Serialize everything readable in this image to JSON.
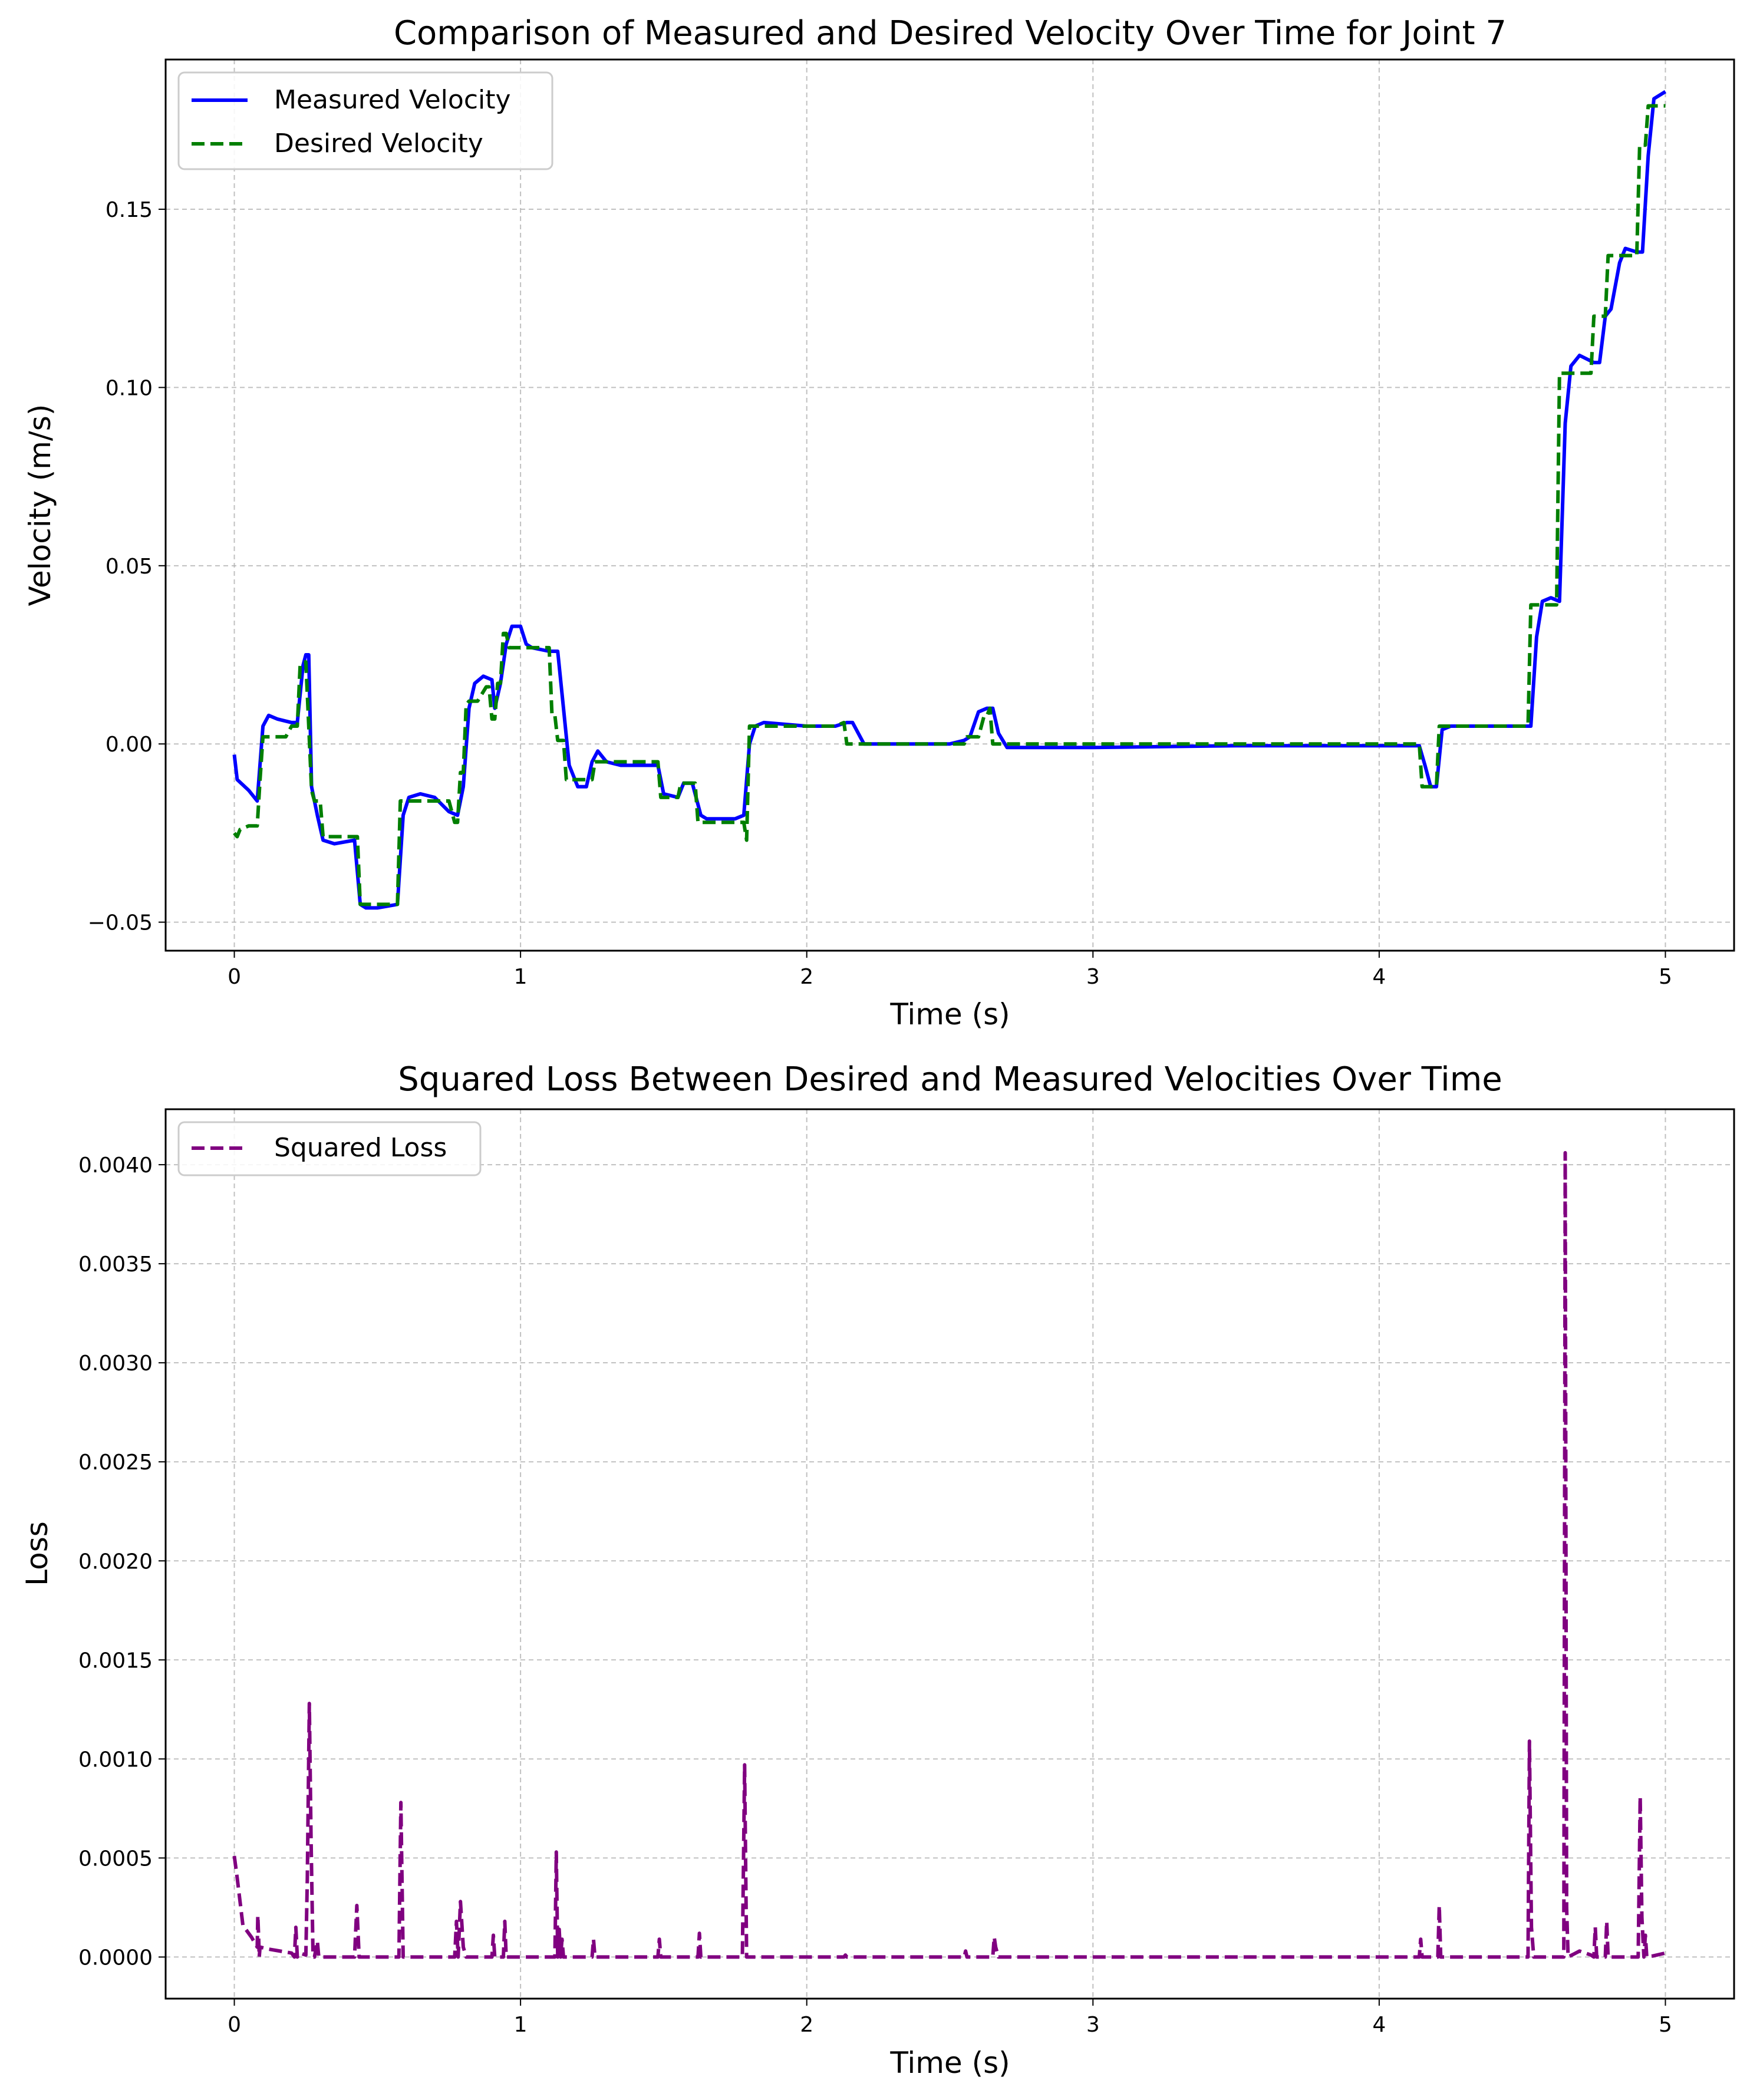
{
  "chart_data": [
    {
      "type": "line",
      "title": "Comparison of Measured and Desired Velocity Over Time for Joint 7",
      "xlabel": "Time (s)",
      "ylabel": "Velocity (m/s)",
      "xlim": [
        -0.24,
        5.24
      ],
      "ylim": [
        -0.058,
        0.192
      ],
      "xticks": [
        0,
        1,
        2,
        3,
        4,
        5
      ],
      "xtick_labels": [
        "0",
        "1",
        "2",
        "3",
        "4",
        "5"
      ],
      "yticks": [
        -0.05,
        0.0,
        0.05,
        0.1,
        0.15
      ],
      "ytick_labels": [
        "−0.05",
        "0.00",
        "0.05",
        "0.10",
        "0.15"
      ],
      "grid": true,
      "legend": "top-left",
      "series": [
        {
          "name": "Measured Velocity",
          "color": "#0000ff",
          "style": "solid",
          "x": [
            0.0,
            0.01,
            0.05,
            0.08,
            0.1,
            0.12,
            0.15,
            0.2,
            0.22,
            0.24,
            0.25,
            0.26,
            0.27,
            0.29,
            0.31,
            0.35,
            0.42,
            0.44,
            0.46,
            0.5,
            0.57,
            0.59,
            0.61,
            0.65,
            0.7,
            0.75,
            0.78,
            0.8,
            0.82,
            0.84,
            0.87,
            0.9,
            0.91,
            0.93,
            0.95,
            0.97,
            1.0,
            1.02,
            1.04,
            1.1,
            1.13,
            1.15,
            1.17,
            1.2,
            1.23,
            1.25,
            1.27,
            1.3,
            1.35,
            1.48,
            1.5,
            1.55,
            1.57,
            1.6,
            1.63,
            1.65,
            1.75,
            1.78,
            1.8,
            1.82,
            1.85,
            2.0,
            2.1,
            2.14,
            2.16,
            2.2,
            2.5,
            2.55,
            2.57,
            2.6,
            2.63,
            2.65,
            2.67,
            2.7,
            3.0,
            3.5,
            4.14,
            4.16,
            4.18,
            4.2,
            4.22,
            4.25,
            4.5,
            4.53,
            4.55,
            4.57,
            4.6,
            4.63,
            4.65,
            4.67,
            4.7,
            4.75,
            4.77,
            4.79,
            4.81,
            4.84,
            4.86,
            4.9,
            4.92,
            4.94,
            4.96,
            5.0
          ],
          "y": [
            -0.003,
            -0.01,
            -0.013,
            -0.016,
            0.005,
            0.008,
            0.007,
            0.006,
            0.006,
            0.022,
            0.025,
            0.025,
            -0.012,
            -0.02,
            -0.027,
            -0.028,
            -0.027,
            -0.045,
            -0.046,
            -0.046,
            -0.045,
            -0.02,
            -0.015,
            -0.014,
            -0.015,
            -0.019,
            -0.02,
            -0.012,
            0.01,
            0.017,
            0.019,
            0.018,
            0.01,
            0.017,
            0.028,
            0.033,
            0.033,
            0.028,
            0.027,
            0.026,
            0.026,
            0.01,
            -0.006,
            -0.012,
            -0.012,
            -0.005,
            -0.002,
            -0.005,
            -0.006,
            -0.006,
            -0.014,
            -0.015,
            -0.011,
            -0.011,
            -0.02,
            -0.021,
            -0.021,
            -0.02,
            0.0,
            0.005,
            0.006,
            0.005,
            0.005,
            0.006,
            0.006,
            0.0,
            0.0,
            0.001,
            0.002,
            0.009,
            0.01,
            0.01,
            0.003,
            -0.001,
            -0.001,
            -0.0005,
            -0.0005,
            -0.006,
            -0.012,
            -0.012,
            0.004,
            0.005,
            0.005,
            0.005,
            0.03,
            0.04,
            0.041,
            0.04,
            0.09,
            0.106,
            0.109,
            0.107,
            0.107,
            0.12,
            0.122,
            0.135,
            0.139,
            0.138,
            0.138,
            0.165,
            0.181,
            0.183
          ]
        },
        {
          "name": "Desired Velocity",
          "color": "#007f00",
          "style": "dashed",
          "x": [
            0.0,
            0.01,
            0.02,
            0.05,
            0.08,
            0.09,
            0.1,
            0.12,
            0.15,
            0.18,
            0.2,
            0.21,
            0.22,
            0.23,
            0.24,
            0.25,
            0.26,
            0.27,
            0.28,
            0.29,
            0.3,
            0.31,
            0.35,
            0.42,
            0.43,
            0.44,
            0.48,
            0.57,
            0.58,
            0.59,
            0.65,
            0.75,
            0.77,
            0.78,
            0.79,
            0.8,
            0.81,
            0.82,
            0.85,
            0.88,
            0.89,
            0.9,
            0.91,
            0.92,
            0.93,
            0.94,
            0.95,
            0.96,
            1.02,
            1.03,
            1.1,
            1.11,
            1.12,
            1.13,
            1.15,
            1.16,
            1.2,
            1.25,
            1.26,
            1.3,
            1.48,
            1.49,
            1.55,
            1.56,
            1.61,
            1.62,
            1.75,
            1.78,
            1.79,
            1.8,
            1.85,
            2.1,
            2.13,
            2.14,
            2.5,
            2.55,
            2.56,
            2.6,
            2.62,
            2.63,
            2.64,
            2.65,
            3.0,
            4.14,
            4.15,
            4.2,
            4.21,
            4.5,
            4.52,
            4.53,
            4.55,
            4.6,
            4.62,
            4.63,
            4.65,
            4.74,
            4.75,
            4.79,
            4.8,
            4.83,
            4.84,
            4.9,
            4.91,
            4.93,
            4.94,
            5.0
          ],
          "y": [
            -0.025,
            -0.026,
            -0.024,
            -0.023,
            -0.023,
            -0.01,
            0.002,
            0.002,
            0.002,
            0.002,
            0.005,
            0.005,
            0.005,
            0.022,
            0.023,
            0.023,
            0.005,
            -0.013,
            -0.016,
            -0.016,
            -0.016,
            -0.026,
            -0.026,
            -0.026,
            -0.026,
            -0.045,
            -0.045,
            -0.045,
            -0.016,
            -0.016,
            -0.016,
            -0.016,
            -0.022,
            -0.022,
            -0.008,
            -0.008,
            0.011,
            0.012,
            0.012,
            0.016,
            0.016,
            0.007,
            0.007,
            0.017,
            0.017,
            0.031,
            0.031,
            0.027,
            0.027,
            0.027,
            0.027,
            0.008,
            0.008,
            0.001,
            0.001,
            -0.01,
            -0.01,
            -0.01,
            -0.005,
            -0.005,
            -0.005,
            -0.015,
            -0.015,
            -0.011,
            -0.011,
            -0.022,
            -0.022,
            -0.022,
            -0.027,
            0.005,
            0.005,
            0.005,
            0.006,
            0.0,
            0.0,
            0.0,
            0.002,
            0.002,
            0.008,
            0.008,
            0.01,
            0.0,
            0.0,
            0.0,
            -0.012,
            -0.012,
            0.005,
            0.005,
            0.005,
            0.039,
            0.039,
            0.039,
            0.039,
            0.104,
            0.104,
            0.104,
            0.12,
            0.12,
            0.137,
            0.137,
            0.137,
            0.137,
            0.168,
            0.168,
            0.179,
            0.179
          ]
        }
      ]
    },
    {
      "type": "line",
      "title": "Squared Loss Between Desired and Measured Velocities Over Time",
      "xlabel": "Time (s)",
      "ylabel": "Loss",
      "xlim": [
        -0.24,
        5.24
      ],
      "ylim": [
        -0.00021,
        0.00428
      ],
      "xticks": [
        0,
        1,
        2,
        3,
        4,
        5
      ],
      "xtick_labels": [
        "0",
        "1",
        "2",
        "3",
        "4",
        "5"
      ],
      "yticks": [
        0.0,
        0.0005,
        0.001,
        0.0015,
        0.002,
        0.0025,
        0.003,
        0.0035,
        0.004
      ],
      "ytick_labels": [
        "0.0000",
        "0.0005",
        "0.0010",
        "0.0015",
        "0.0020",
        "0.0025",
        "0.0030",
        "0.0035",
        "0.0040"
      ],
      "grid": true,
      "legend": "top-left",
      "series": [
        {
          "name": "Squared Loss",
          "color": "#800080",
          "style": "dashed",
          "x": [
            0.0,
            0.01,
            0.03,
            0.06,
            0.08,
            0.082,
            0.085,
            0.087,
            0.09,
            0.12,
            0.2,
            0.21,
            0.215,
            0.22,
            0.23,
            0.25,
            0.255,
            0.262,
            0.268,
            0.275,
            0.28,
            0.29,
            0.295,
            0.3,
            0.31,
            0.42,
            0.428,
            0.436,
            0.44,
            0.575,
            0.582,
            0.59,
            0.6,
            0.77,
            0.776,
            0.782,
            0.79,
            0.8,
            0.81,
            0.82,
            0.9,
            0.905,
            0.91,
            0.94,
            0.945,
            0.95,
            0.96,
            1.12,
            1.125,
            1.13,
            1.135,
            1.14,
            1.145,
            1.15,
            1.25,
            1.255,
            1.26,
            1.48,
            1.485,
            1.49,
            1.6,
            1.62,
            1.625,
            1.63,
            1.775,
            1.783,
            1.79,
            1.8,
            2.13,
            2.135,
            2.14,
            2.55,
            2.555,
            2.56,
            2.65,
            2.655,
            2.66,
            2.67,
            3.0,
            4.14,
            4.145,
            4.15,
            4.205,
            4.21,
            4.215,
            4.22,
            4.52,
            4.525,
            4.532,
            4.54,
            4.6,
            4.64,
            4.645,
            4.65,
            4.655,
            4.66,
            4.7,
            4.74,
            4.75,
            4.755,
            4.76,
            4.79,
            4.795,
            4.8,
            4.905,
            4.912,
            4.918,
            4.925,
            4.93,
            4.935,
            4.94,
            5.0
          ],
          "y": [
            0.00051,
            0.0004,
            0.00016,
            0.0001,
            5e-05,
            0.00021,
            0.0001,
            0.0,
            5e-05,
            4e-05,
            2e-05,
            0.0,
            0.00015,
            0.0,
            2e-05,
            1e-05,
            0.0004,
            0.00128,
            0.0006,
            0.0,
            0.0,
            8e-05,
            0.0,
            0.0,
            0.0,
            0.0,
            0.00026,
            0.0,
            0.0,
            0.0,
            0.00078,
            0.0,
            0.0,
            0.0,
            0.00018,
            0.0,
            0.00028,
            5e-05,
            0.0,
            0.0,
            0.0,
            0.00011,
            0.0,
            0.0,
            0.00018,
            0.0,
            0.0,
            0.0,
            0.00053,
            0.0,
            0.00014,
            0.0,
            9e-05,
            0.0,
            0.0,
            9e-05,
            0.0,
            0.0,
            9e-05,
            0.0,
            0.0,
            0.0,
            0.00012,
            0.0,
            0.0,
            0.00097,
            0.0,
            0.0,
            0.0,
            1e-05,
            0.0,
            0.0,
            3e-05,
            0.0,
            0.0,
            0.0001,
            5e-05,
            0.0,
            0.0,
            0.0,
            9e-05,
            0.0,
            0.0,
            0.00026,
            0.0,
            0.0,
            0.0,
            0.00109,
            0.00015,
            0.0,
            0.0,
            0.0,
            0.0,
            0.00406,
            0.00025,
            0.0,
            3e-05,
            1e-05,
            0.0,
            0.00015,
            0.0,
            0.0,
            0.00018,
            0.0,
            0.0,
            0.00081,
            0.0002,
            0.0,
            0.00011,
            0.0,
            0.0,
            2e-05
          ]
        }
      ]
    }
  ]
}
